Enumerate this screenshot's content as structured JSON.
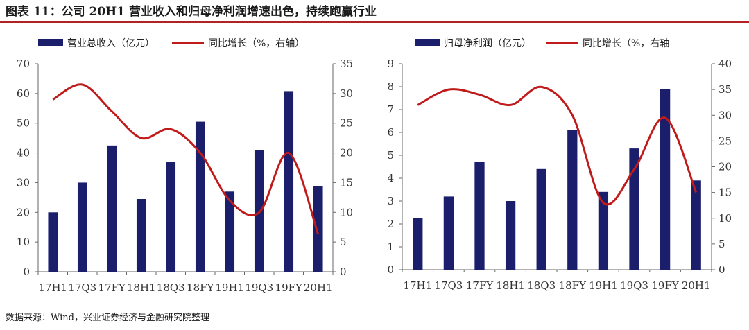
{
  "figure": {
    "title": "图表 11：公司 20H1 营业收入和归母净利润增速出色，持续跑赢行业",
    "source": "数据来源：Wind，兴业证券经济与金融研究院整理"
  },
  "colors": {
    "bar": "#1b1f6b",
    "line": "#c01b1b",
    "rule": "#b22222"
  },
  "chart_data": [
    {
      "type": "bar",
      "categories": [
        "17H1",
        "17Q3",
        "17FY",
        "18H1",
        "18Q3",
        "18FY",
        "19H1",
        "19Q3",
        "19FY",
        "20H1"
      ],
      "series": [
        {
          "name": "营业总收入（亿元）",
          "type": "bar",
          "axis": "left",
          "values": [
            20,
            30,
            42.5,
            24.5,
            37,
            50.5,
            27,
            41,
            60.8,
            28.7
          ]
        },
        {
          "name": "同比增长（%，右轴）",
          "type": "line",
          "axis": "right",
          "values": [
            29,
            31.5,
            27,
            22.5,
            24,
            20,
            12,
            10,
            20,
            6.3
          ]
        }
      ],
      "ylim_left": [
        0,
        70
      ],
      "yticks_left": [
        0,
        10,
        20,
        30,
        40,
        50,
        60,
        70
      ],
      "ylim_right": [
        0,
        35
      ],
      "yticks_right": [
        0,
        5,
        10,
        15,
        20,
        25,
        30,
        35
      ],
      "legend": "top",
      "grid": false
    },
    {
      "type": "bar",
      "categories": [
        "17H1",
        "17Q3",
        "17FY",
        "18H1",
        "18Q3",
        "18FY",
        "19H1",
        "19Q3",
        "19FY",
        "20H1"
      ],
      "series": [
        {
          "name": "归母净利润（亿元）",
          "type": "bar",
          "axis": "left",
          "values": [
            2.25,
            3.2,
            4.7,
            3.0,
            4.4,
            6.1,
            3.4,
            5.3,
            7.9,
            3.9
          ]
        },
        {
          "name": "同比增长（%，右轴",
          "type": "line",
          "axis": "right",
          "values": [
            32,
            35,
            34,
            32,
            35.5,
            30,
            13,
            19.5,
            29.5,
            15
          ]
        }
      ],
      "ylim_left": [
        0,
        9
      ],
      "yticks_left": [
        0,
        1,
        2,
        3,
        4,
        5,
        6,
        7,
        8,
        9
      ],
      "ylim_right": [
        0,
        40
      ],
      "yticks_right": [
        0,
        5,
        10,
        15,
        20,
        25,
        30,
        35,
        40
      ],
      "legend": "top",
      "grid": false
    }
  ]
}
